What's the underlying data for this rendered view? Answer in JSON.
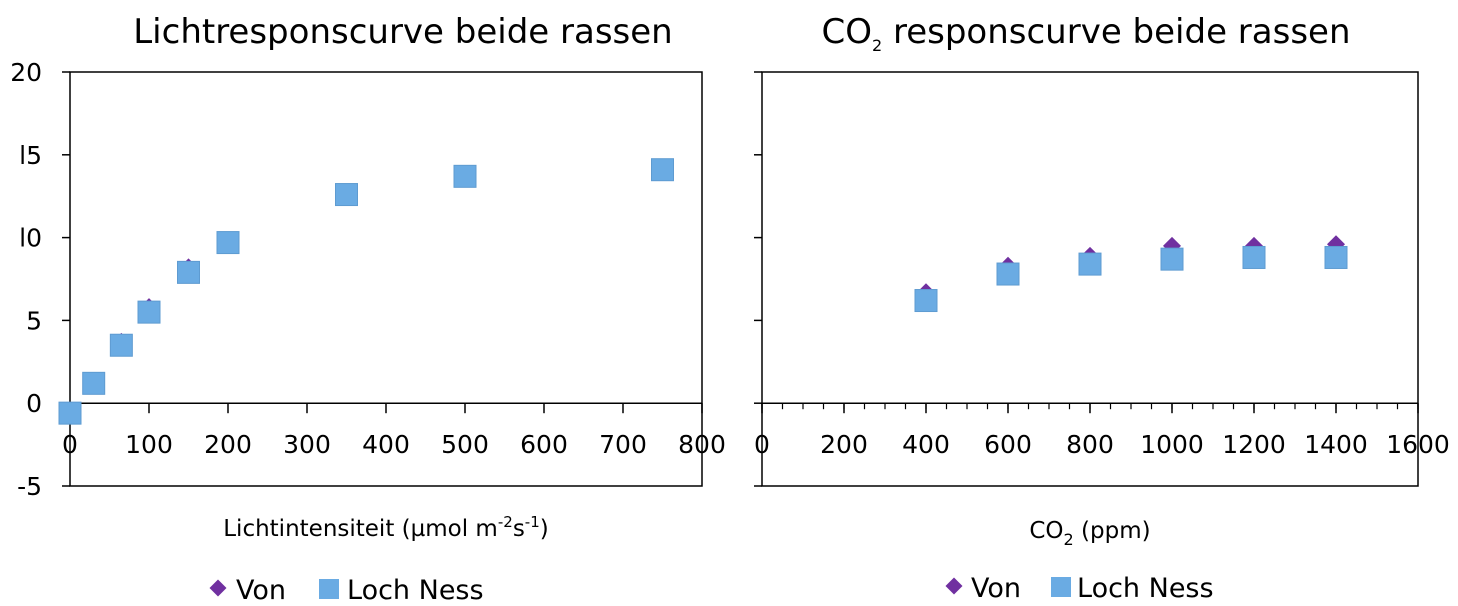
{
  "colors": {
    "von": "#7030A0",
    "loch_ness": "#6AABE3",
    "axis": "#000000"
  },
  "chart_data": [
    {
      "type": "scatter",
      "title": "Lichtresponscurve beide rassen",
      "xlabel": {
        "main": "Lichtintensiteit (µmol m",
        "sup1": "-2",
        "mid": "s",
        "sup2": "-1",
        "end": ")"
      },
      "ylabel": "",
      "xlim": [
        0,
        800
      ],
      "ylim": [
        -5,
        20
      ],
      "xticks": [
        "0",
        "100",
        "200",
        "300",
        "400",
        "500",
        "600",
        "700",
        "800"
      ],
      "yticks": [
        "-5",
        "0",
        "5",
        "10",
        "15",
        "20"
      ],
      "yticks_visible": [
        "-5",
        "0",
        "5",
        "l0",
        "l5",
        "20"
      ],
      "series": [
        {
          "name": "Von",
          "marker": "diamond",
          "points": [
            [
              0,
              -0.6
            ],
            [
              30,
              1.3
            ],
            [
              65,
              3.7
            ],
            [
              100,
              5.8
            ],
            [
              150,
              8.2
            ],
            [
              200,
              9.8
            ],
            [
              350,
              12.6
            ],
            [
              500,
              13.8
            ],
            [
              750,
              14.1
            ]
          ]
        },
        {
          "name": "Loch Ness",
          "marker": "square",
          "points": [
            [
              0,
              -0.6
            ],
            [
              30,
              1.2
            ],
            [
              65,
              3.5
            ],
            [
              100,
              5.5
            ],
            [
              150,
              7.9
            ],
            [
              200,
              9.7
            ],
            [
              350,
              12.6
            ],
            [
              500,
              13.7
            ],
            [
              750,
              14.1
            ]
          ]
        }
      ],
      "legend": [
        "Von",
        "Loch Ness"
      ],
      "legend_position": "bottom"
    },
    {
      "type": "scatter",
      "title": {
        "main": "CO",
        "sub": "2",
        "rest": " responscurve beide rassen"
      },
      "xlabel": {
        "main": "CO",
        "sub": "2",
        "rest": " (ppm)"
      },
      "ylabel": "",
      "xlim": [
        0,
        1600
      ],
      "ylim": [
        -5,
        20
      ],
      "xticks": [
        "0",
        "200",
        "400",
        "600",
        "800",
        "1000",
        "1200",
        "1400",
        "1600"
      ],
      "series": [
        {
          "name": "Von",
          "marker": "diamond",
          "points": [
            [
              400,
              6.7
            ],
            [
              600,
              8.3
            ],
            [
              800,
              8.9
            ],
            [
              1000,
              9.5
            ],
            [
              1200,
              9.5
            ],
            [
              1400,
              9.6
            ]
          ]
        },
        {
          "name": "Loch Ness",
          "marker": "square",
          "points": [
            [
              400,
              6.2
            ],
            [
              600,
              7.8
            ],
            [
              800,
              8.4
            ],
            [
              1000,
              8.7
            ],
            [
              1200,
              8.8
            ],
            [
              1400,
              8.8
            ]
          ]
        }
      ],
      "legend": [
        "Von",
        "Loch Ness"
      ],
      "legend_position": "bottom"
    }
  ]
}
